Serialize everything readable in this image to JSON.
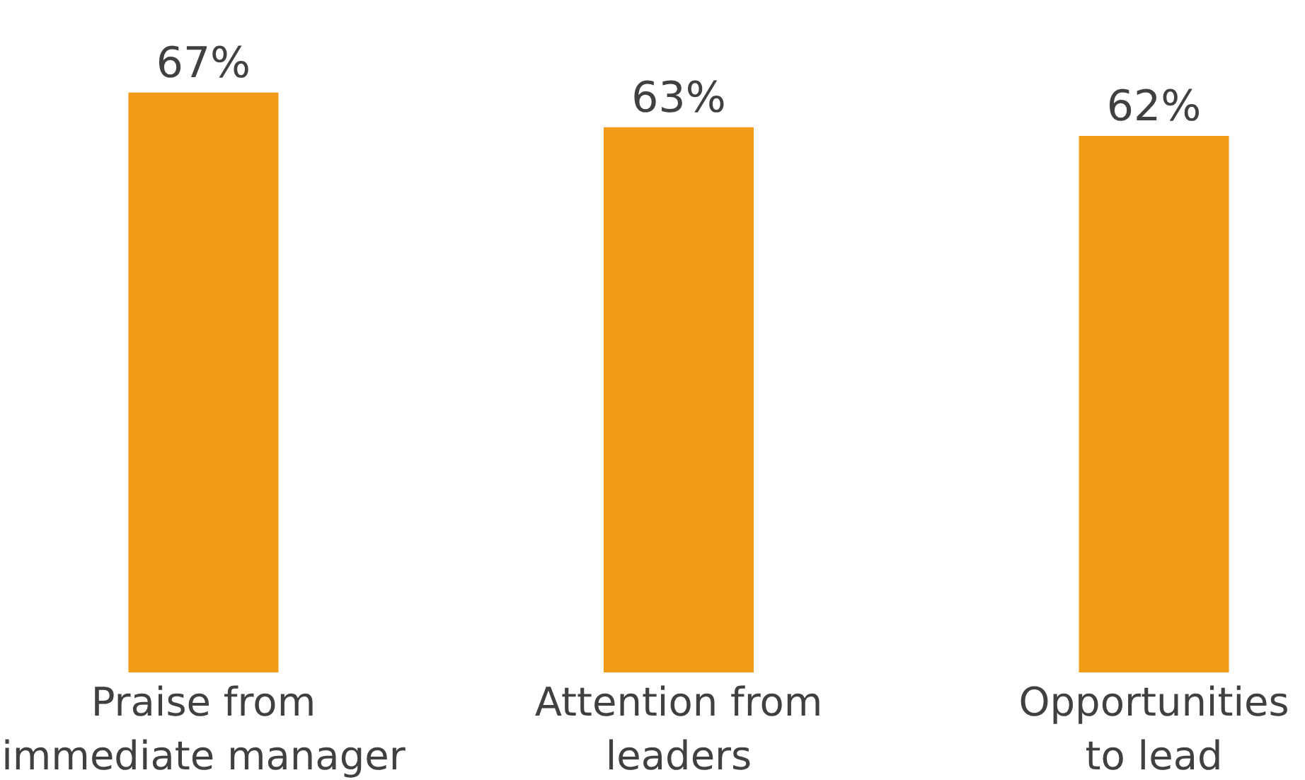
{
  "chart_data": {
    "type": "bar",
    "categories": [
      "Praise from\nimmediate manager",
      "Attention from\nleaders",
      "Opportunities\nto lead"
    ],
    "values": [
      67,
      63,
      62
    ],
    "color": "#f29b16",
    "value_labels": [
      "67%",
      "63%",
      "62%"
    ]
  }
}
